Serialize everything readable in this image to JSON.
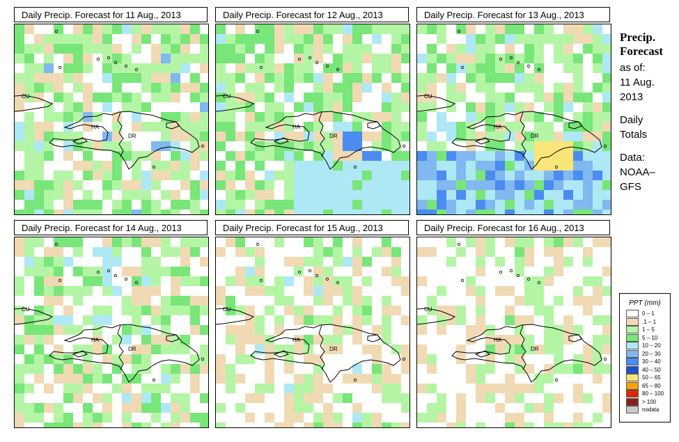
{
  "panels": [
    {
      "title": "Daily Precip. Forecast for  11 Aug., 2013",
      "seed": 11,
      "profile": "p11"
    },
    {
      "title": "Daily Precip. Forecast for  12 Aug., 2013",
      "seed": 12,
      "profile": "p12"
    },
    {
      "title": "Daily Precip. Forecast for  13 Aug., 2013",
      "seed": 13,
      "profile": "p13"
    },
    {
      "title": "Daily Precip. Forecast for  14 Aug., 2013",
      "seed": 14,
      "profile": "p14"
    },
    {
      "title": "Daily Precip. Forecast for  15 Aug., 2013",
      "seed": 15,
      "profile": "p15"
    },
    {
      "title": "Daily Precip. Forecast for  16 Aug., 2013",
      "seed": 16,
      "profile": "p16"
    }
  ],
  "map_labels": {
    "cu": "CU",
    "ha": "HA",
    "dr": "DR"
  },
  "sidebar": {
    "heading1": "Precip.",
    "heading2": "Forecast",
    "as_of": "as of:",
    "date1": "11 Aug.",
    "date2": "2013",
    "totals1": "Daily",
    "totals2": "Totals",
    "data1": "Data:",
    "data2": "NOAA–",
    "data3": "GFS"
  },
  "legend": {
    "title": "PPT (mm)",
    "items": [
      {
        "label": "0 – 1",
        "color": "#ffffff"
      },
      {
        "label": ".1 – 1",
        "color": "#f0dab4"
      },
      {
        "label": "1 – 5",
        "color": "#b4f5a5"
      },
      {
        "label": "5 – 10",
        "color": "#78e678"
      },
      {
        "label": "10 – 20",
        "color": "#aee8f5"
      },
      {
        "label": "20 – 30",
        "color": "#82b8f0"
      },
      {
        "label": "30 – 40",
        "color": "#4a8cf0"
      },
      {
        "label": "40 – 50",
        "color": "#1e50d2"
      },
      {
        "label": "50 – 65",
        "color": "#fae678"
      },
      {
        "label": "65 – 80",
        "color": "#ffa000"
      },
      {
        "label": "80 – 100",
        "color": "#dc2800"
      },
      {
        "label": "> 100",
        "color": "#8c1e1e"
      },
      {
        "label": "nodata",
        "color": "#c8c8c8"
      }
    ]
  }
}
